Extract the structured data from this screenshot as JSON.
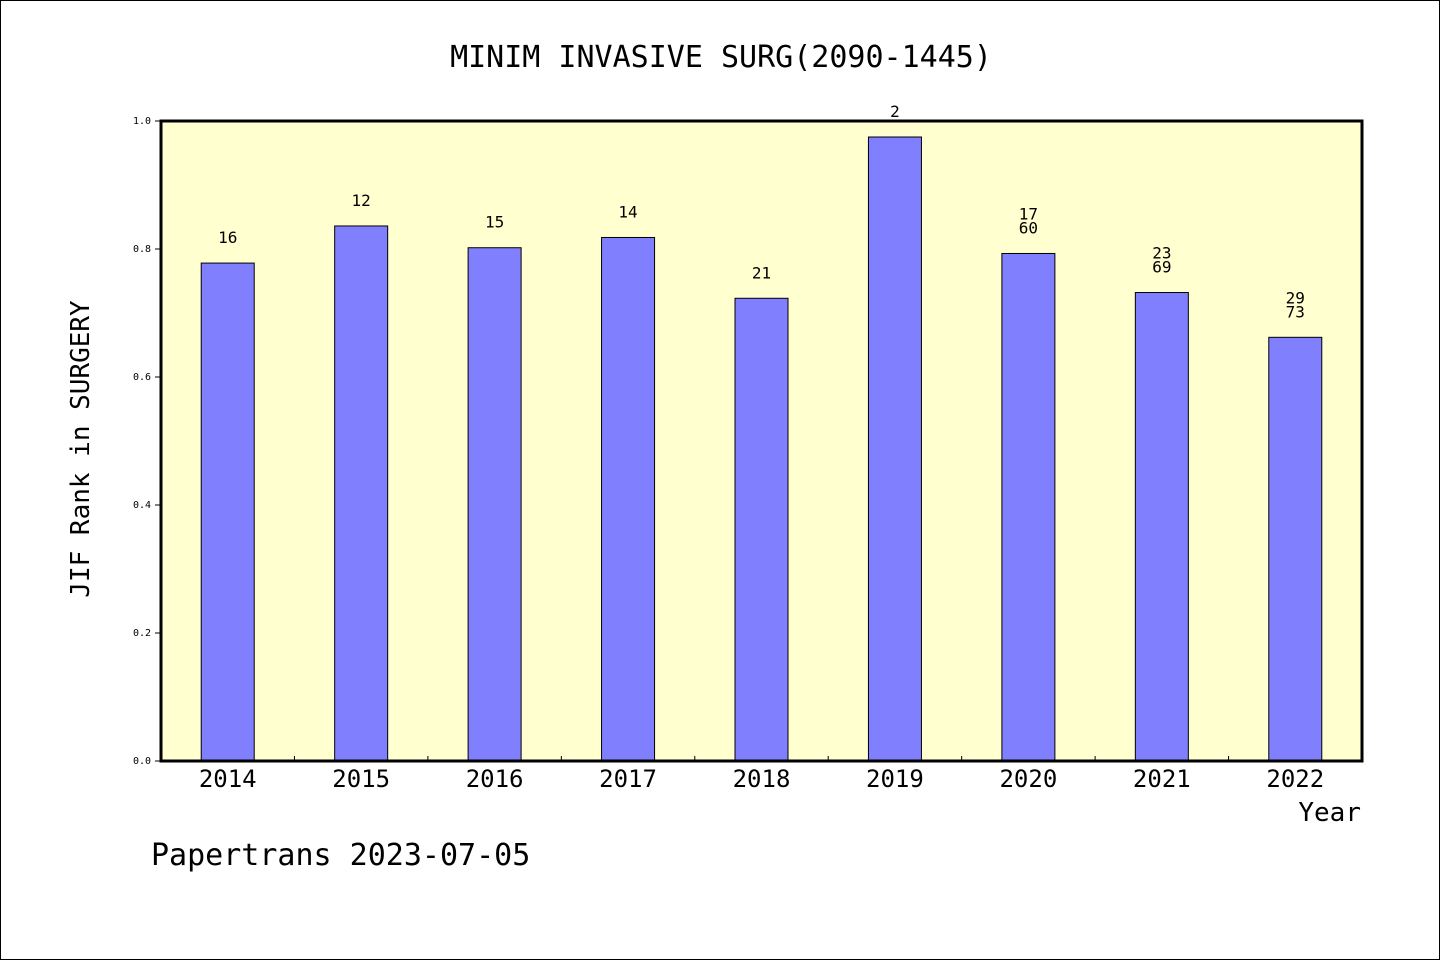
{
  "chart_data": {
    "type": "bar",
    "title": "MINIM INVASIVE SURG(2090-1445)",
    "xlabel": "Year",
    "ylabel": "JIF Rank in SURGERY",
    "ylim": [
      0,
      1.0
    ],
    "yticks": [
      "0.0",
      "0.2",
      "0.4",
      "0.6",
      "0.8",
      "1.0"
    ],
    "categories": [
      "2014",
      "2015",
      "2016",
      "2017",
      "2018",
      "2019",
      "2020",
      "2021",
      "2022"
    ],
    "values": [
      0.778,
      0.836,
      0.802,
      0.818,
      0.723,
      0.975,
      0.793,
      0.732,
      0.662
    ],
    "labels": [
      [
        "16"
      ],
      [
        "12"
      ],
      [
        "15"
      ],
      [
        "14"
      ],
      [
        "21"
      ],
      [
        "2"
      ],
      [
        "17",
        "60"
      ],
      [
        "23",
        "69"
      ],
      [
        "29",
        "73"
      ]
    ],
    "grid": false,
    "colors": {
      "bar_fill": "#8080ff",
      "bar_stroke": "#000000",
      "plot_background": "#ffffd0"
    }
  },
  "footer": {
    "text": "Papertrans 2023-07-05"
  }
}
